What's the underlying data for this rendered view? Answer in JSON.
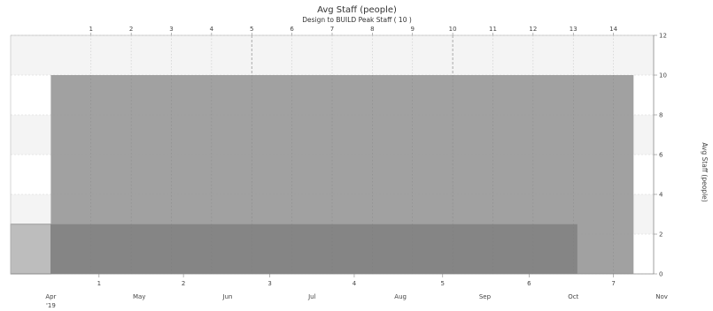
{
  "chart_data": {
    "type": "area",
    "title": "Avg Staff (people)",
    "subtitle": "Design to BUILD Peak Staff ( 10 )",
    "ylabel": "Avg Staff (people)",
    "ylim": [
      0,
      12
    ],
    "yticks": [
      0,
      2,
      4,
      6,
      8,
      10,
      12
    ],
    "x_unit": "weeks from start (Apr 2019)",
    "xlim": [
      0,
      32
    ],
    "top_axis_ticks": [
      {
        "label": "1",
        "x": 4
      },
      {
        "label": "2",
        "x": 6
      },
      {
        "label": "3",
        "x": 8
      },
      {
        "label": "4",
        "x": 10
      },
      {
        "label": "5",
        "x": 12
      },
      {
        "label": "6",
        "x": 14
      },
      {
        "label": "7",
        "x": 16
      },
      {
        "label": "8",
        "x": 18
      },
      {
        "label": "9",
        "x": 20
      },
      {
        "label": "10",
        "x": 22
      },
      {
        "label": "11",
        "x": 24
      },
      {
        "label": "12",
        "x": 26
      },
      {
        "label": "13",
        "x": 28
      },
      {
        "label": "14",
        "x": 30
      }
    ],
    "bottom_month_ticks": [
      {
        "label": "Apr",
        "sub": "'19",
        "x": 2
      },
      {
        "label": "May",
        "x": 6.4
      },
      {
        "label": "Jun",
        "x": 10.8
      },
      {
        "label": "Jul",
        "x": 15
      },
      {
        "label": "Aug",
        "x": 19.4
      },
      {
        "label": "Sep",
        "x": 23.6
      },
      {
        "label": "Oct",
        "x": 28
      },
      {
        "label": "Nov",
        "x": 32.4
      }
    ],
    "bottom_number_ticks": [
      {
        "label": "1",
        "x": 4.4
      },
      {
        "label": "2",
        "x": 8.6
      },
      {
        "label": "3",
        "x": 12.9
      },
      {
        "label": "4",
        "x": 17.1
      },
      {
        "label": "5",
        "x": 21.5
      },
      {
        "label": "6",
        "x": 25.8
      },
      {
        "label": "7",
        "x": 30
      }
    ],
    "series": [
      {
        "segments": [
          {
            "x0": 2,
            "x1": 31,
            "value": 10
          }
        ],
        "color": "#9a9a9a"
      },
      {
        "segments": [
          {
            "x0": 0,
            "x1": 2,
            "value": 2.5
          },
          {
            "x0": 2,
            "x1": 28.2,
            "value": 2.5
          }
        ],
        "color": "#8a8a8a"
      }
    ],
    "grid": true,
    "legend": "none"
  }
}
